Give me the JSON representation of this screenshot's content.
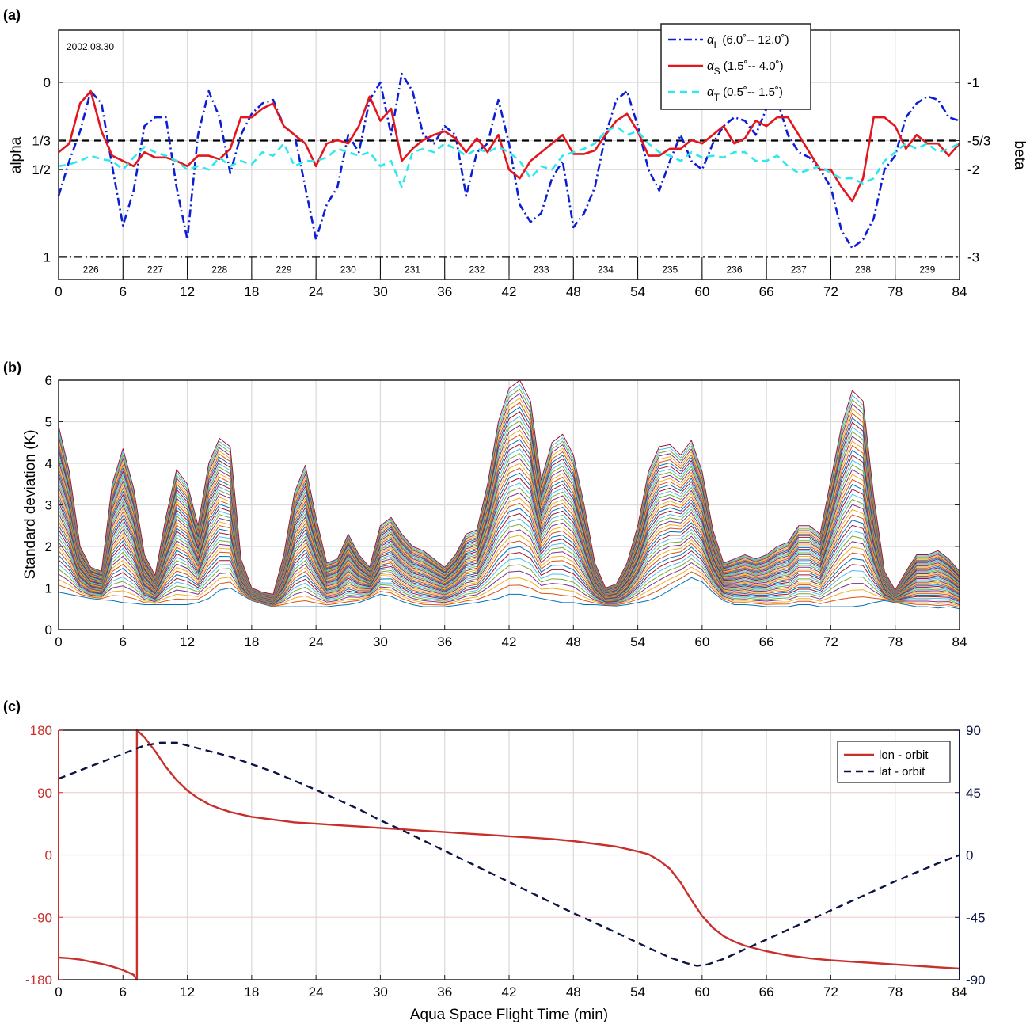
{
  "chart_data": [
    {
      "type": "line",
      "panel_label": "(a)",
      "annotation": "2002.08.30",
      "ylabel_left": "alpha",
      "ylabel_right": "beta",
      "xlim": [
        0,
        84
      ],
      "x_ticks": [
        "0",
        "6",
        "12",
        "18",
        "24",
        "30",
        "36",
        "42",
        "48",
        "54",
        "60",
        "66",
        "72",
        "78",
        "84"
      ],
      "y_left_ticks": [
        {
          "value": 0,
          "label": "0"
        },
        {
          "value": 0.3333,
          "label": "1/3"
        },
        {
          "value": 0.5,
          "label": "1/2"
        },
        {
          "value": 1,
          "label": "1"
        }
      ],
      "y_right_ticks": [
        "-1",
        "-5/3",
        "-2",
        "-3"
      ],
      "ylim": [
        -0.3,
        1.13
      ],
      "y_reversed": true,
      "orbit_labels": [
        "226",
        "227",
        "228",
        "229",
        "230",
        "231",
        "232",
        "233",
        "234",
        "235",
        "236",
        "237",
        "238",
        "239"
      ],
      "reference_lines": [
        {
          "y": 0.3333,
          "style": "dashed"
        },
        {
          "y": 1,
          "style": "dashdot"
        }
      ],
      "legend": {
        "position": "top-right",
        "entries": [
          {
            "symbol": "α",
            "sub": "L",
            "range": " (6.0˚-- 12.0˚)"
          },
          {
            "symbol": "α",
            "sub": "S",
            "range": " (1.5˚-- 4.0˚)"
          },
          {
            "symbol": "α",
            "sub": "T",
            "range": " (0.5˚-- 1.5˚)"
          }
        ]
      },
      "series": [
        {
          "color": "#0b1ed6",
          "dash": "dashdot",
          "x": [
            0,
            1,
            2,
            3,
            4,
            5,
            6,
            7,
            8,
            9,
            10,
            11,
            12,
            13,
            14,
            15,
            16,
            17,
            18,
            19,
            20,
            21,
            22,
            23,
            24,
            25,
            26,
            27,
            28,
            29,
            30,
            31,
            32,
            33,
            34,
            35,
            36,
            37,
            38,
            39,
            40,
            41,
            42,
            43,
            44,
            45,
            46,
            47,
            48,
            49,
            50,
            51,
            52,
            53,
            54,
            55,
            56,
            57,
            58,
            59,
            60,
            61,
            62,
            63,
            64,
            65,
            66,
            67,
            68,
            69,
            70,
            71,
            72,
            73,
            74,
            75,
            76,
            77,
            78,
            79,
            80,
            81,
            82,
            83,
            84
          ],
          "y": [
            0.65,
            0.45,
            0.28,
            0.05,
            0.12,
            0.48,
            0.82,
            0.62,
            0.25,
            0.2,
            0.2,
            0.6,
            0.9,
            0.3,
            0.05,
            0.2,
            0.52,
            0.3,
            0.18,
            0.12,
            0.1,
            0.25,
            0.3,
            0.6,
            0.9,
            0.7,
            0.6,
            0.3,
            0.4,
            0.1,
            0.0,
            0.3,
            -0.05,
            0.05,
            0.3,
            0.35,
            0.25,
            0.3,
            0.65,
            0.4,
            0.35,
            0.1,
            0.35,
            0.7,
            0.8,
            0.75,
            0.55,
            0.45,
            0.83,
            0.75,
            0.6,
            0.3,
            0.1,
            0.05,
            0.25,
            0.5,
            0.62,
            0.45,
            0.3,
            0.45,
            0.5,
            0.35,
            0.25,
            0.2,
            0.22,
            0.3,
            0.15,
            0.1,
            0.3,
            0.4,
            0.43,
            0.5,
            0.6,
            0.85,
            0.95,
            0.9,
            0.78,
            0.5,
            0.42,
            0.2,
            0.12,
            0.08,
            0.1,
            0.2,
            0.22
          ]
        },
        {
          "color": "#e3161d",
          "dash": "solid",
          "x": [
            0,
            1,
            2,
            3,
            4,
            5,
            6,
            7,
            8,
            9,
            10,
            11,
            12,
            13,
            14,
            15,
            16,
            17,
            18,
            19,
            20,
            21,
            22,
            23,
            24,
            25,
            26,
            27,
            28,
            29,
            30,
            31,
            32,
            33,
            34,
            35,
            36,
            37,
            38,
            39,
            40,
            41,
            42,
            43,
            44,
            45,
            46,
            47,
            48,
            49,
            50,
            51,
            52,
            53,
            54,
            55,
            56,
            57,
            58,
            59,
            60,
            61,
            62,
            63,
            64,
            65,
            66,
            67,
            68,
            69,
            70,
            71,
            72,
            73,
            74,
            75,
            76,
            77,
            78,
            79,
            80,
            81,
            82,
            83,
            84
          ],
          "y": [
            0.4,
            0.35,
            0.12,
            0.05,
            0.28,
            0.42,
            0.45,
            0.48,
            0.4,
            0.43,
            0.43,
            0.45,
            0.48,
            0.42,
            0.42,
            0.44,
            0.38,
            0.2,
            0.2,
            0.15,
            0.12,
            0.25,
            0.3,
            0.35,
            0.48,
            0.35,
            0.33,
            0.35,
            0.25,
            0.08,
            0.22,
            0.15,
            0.45,
            0.38,
            0.33,
            0.3,
            0.28,
            0.32,
            0.4,
            0.32,
            0.4,
            0.3,
            0.5,
            0.55,
            0.45,
            0.4,
            0.35,
            0.3,
            0.41,
            0.41,
            0.39,
            0.3,
            0.22,
            0.18,
            0.28,
            0.42,
            0.42,
            0.38,
            0.38,
            0.33,
            0.35,
            0.3,
            0.25,
            0.35,
            0.32,
            0.22,
            0.25,
            0.2,
            0.2,
            0.3,
            0.4,
            0.5,
            0.5,
            0.6,
            0.68,
            0.55,
            0.2,
            0.2,
            0.25,
            0.38,
            0.3,
            0.35,
            0.35,
            0.42,
            0.35
          ]
        },
        {
          "color": "#2ee8ee",
          "dash": "dashed",
          "x": [
            0,
            1,
            2,
            3,
            4,
            5,
            6,
            7,
            8,
            9,
            10,
            11,
            12,
            13,
            14,
            15,
            16,
            17,
            18,
            19,
            20,
            21,
            22,
            23,
            24,
            25,
            26,
            27,
            28,
            29,
            30,
            31,
            32,
            33,
            34,
            35,
            36,
            37,
            38,
            39,
            40,
            41,
            42,
            43,
            44,
            45,
            46,
            47,
            48,
            49,
            50,
            51,
            52,
            53,
            54,
            55,
            56,
            57,
            58,
            59,
            60,
            61,
            62,
            63,
            64,
            65,
            66,
            67,
            68,
            69,
            70,
            71,
            72,
            73,
            74,
            75,
            76,
            77,
            78,
            79,
            80,
            81,
            82,
            83,
            84
          ],
          "y": [
            0.48,
            0.47,
            0.45,
            0.42,
            0.44,
            0.45,
            0.5,
            0.43,
            0.37,
            0.4,
            0.42,
            0.45,
            0.5,
            0.48,
            0.5,
            0.43,
            0.48,
            0.45,
            0.47,
            0.4,
            0.42,
            0.35,
            0.48,
            0.45,
            0.45,
            0.43,
            0.38,
            0.4,
            0.42,
            0.4,
            0.48,
            0.45,
            0.6,
            0.4,
            0.38,
            0.4,
            0.35,
            0.38,
            0.42,
            0.38,
            0.4,
            0.37,
            0.4,
            0.45,
            0.55,
            0.48,
            0.5,
            0.42,
            0.4,
            0.38,
            0.35,
            0.28,
            0.25,
            0.3,
            0.28,
            0.35,
            0.4,
            0.42,
            0.45,
            0.4,
            0.43,
            0.42,
            0.43,
            0.4,
            0.4,
            0.45,
            0.45,
            0.42,
            0.48,
            0.52,
            0.5,
            0.48,
            0.52,
            0.55,
            0.55,
            0.58,
            0.55,
            0.45,
            0.4,
            0.35,
            0.38,
            0.35,
            0.4,
            0.38,
            0.35
          ]
        }
      ]
    },
    {
      "type": "line",
      "panel_label": "(b)",
      "ylabel": "Standard deviation (K)",
      "xlim": [
        0,
        84
      ],
      "ylim": [
        0,
        6
      ],
      "x_ticks": [
        "0",
        "6",
        "12",
        "18",
        "24",
        "30",
        "36",
        "42",
        "48",
        "54",
        "60",
        "66",
        "72",
        "78",
        "84"
      ],
      "y_ticks": [
        "0",
        "1",
        "2",
        "3",
        "4",
        "5",
        "6"
      ],
      "envelope": {
        "description_series_count": 42,
        "x": [
          0,
          1,
          2,
          3,
          4,
          5,
          6,
          7,
          8,
          9,
          10,
          11,
          12,
          13,
          14,
          15,
          16,
          17,
          18,
          19,
          20,
          21,
          22,
          23,
          24,
          25,
          26,
          27,
          28,
          29,
          30,
          31,
          32,
          33,
          34,
          35,
          36,
          37,
          38,
          39,
          40,
          41,
          42,
          43,
          44,
          45,
          46,
          47,
          48,
          49,
          50,
          51,
          52,
          53,
          54,
          55,
          56,
          57,
          58,
          59,
          60,
          61,
          62,
          63,
          64,
          65,
          66,
          67,
          68,
          69,
          70,
          71,
          72,
          73,
          74,
          75,
          76,
          77,
          78,
          79,
          80,
          81,
          82,
          83,
          84
        ],
        "lower": [
          0.9,
          0.85,
          0.8,
          0.75,
          0.72,
          0.7,
          0.65,
          0.63,
          0.6,
          0.6,
          0.6,
          0.6,
          0.6,
          0.65,
          0.75,
          0.95,
          1.0,
          0.85,
          0.7,
          0.62,
          0.55,
          0.55,
          0.55,
          0.55,
          0.55,
          0.55,
          0.58,
          0.6,
          0.65,
          0.75,
          0.85,
          0.8,
          0.68,
          0.6,
          0.55,
          0.55,
          0.55,
          0.58,
          0.62,
          0.65,
          0.7,
          0.75,
          0.85,
          0.85,
          0.8,
          0.75,
          0.7,
          0.65,
          0.65,
          0.6,
          0.6,
          0.58,
          0.57,
          0.6,
          0.65,
          0.7,
          0.8,
          0.95,
          1.1,
          1.25,
          1.15,
          0.9,
          0.7,
          0.6,
          0.6,
          0.58,
          0.55,
          0.55,
          0.55,
          0.6,
          0.6,
          0.55,
          0.55,
          0.55,
          0.55,
          0.58,
          0.65,
          0.7,
          0.65,
          0.6,
          0.55,
          0.55,
          0.52,
          0.55,
          0.5
        ],
        "upper": [
          4.9,
          3.8,
          2.0,
          1.5,
          1.4,
          3.5,
          4.35,
          3.4,
          1.8,
          1.3,
          2.7,
          3.85,
          3.5,
          2.5,
          4.0,
          4.6,
          4.4,
          1.7,
          1.0,
          0.9,
          0.85,
          1.8,
          3.3,
          3.95,
          2.7,
          1.6,
          1.7,
          2.3,
          1.8,
          1.5,
          2.5,
          2.7,
          2.3,
          2.0,
          1.9,
          1.7,
          1.5,
          1.8,
          2.3,
          2.4,
          3.5,
          5.0,
          5.8,
          6.0,
          5.5,
          3.6,
          4.5,
          4.7,
          4.2,
          3.0,
          1.6,
          1.0,
          1.1,
          1.6,
          2.5,
          3.8,
          4.4,
          4.45,
          4.2,
          4.55,
          3.8,
          2.4,
          1.6,
          1.7,
          1.8,
          1.7,
          1.8,
          2.0,
          2.1,
          2.5,
          2.5,
          2.3,
          3.6,
          4.9,
          5.75,
          5.5,
          3.2,
          1.4,
          0.95,
          1.4,
          1.8,
          1.8,
          1.9,
          1.7,
          1.4
        ]
      }
    },
    {
      "type": "line",
      "panel_label": "(c)",
      "xlabel": "Aqua Space Flight Time (min)",
      "xlim": [
        0,
        84
      ],
      "ylim_left": [
        -180,
        180
      ],
      "ylim_right": [
        -90,
        90
      ],
      "x_ticks": [
        "0",
        "6",
        "12",
        "18",
        "24",
        "30",
        "36",
        "42",
        "48",
        "54",
        "60",
        "66",
        "72",
        "78",
        "84"
      ],
      "y_left_ticks": [
        "180",
        "90",
        "0",
        "-90",
        "-180"
      ],
      "y_right_ticks": [
        "90",
        "45",
        "0",
        "-45",
        "-90"
      ],
      "legend": {
        "position": "top-right",
        "entries": [
          "lon - orbit",
          "lat - orbit"
        ]
      },
      "series": [
        {
          "name": "lon - orbit",
          "color": "#c8302c",
          "dash": "solid",
          "x": [
            0,
            1,
            2,
            3,
            4,
            5,
            6,
            7,
            7.3,
            7.3,
            8,
            9,
            10,
            11,
            12,
            13,
            14,
            15,
            16,
            18,
            20,
            22,
            24,
            26,
            28,
            30,
            32,
            34,
            36,
            38,
            40,
            42,
            44,
            46,
            48,
            50,
            52,
            54,
            55,
            56,
            57,
            58,
            59,
            60,
            61,
            62,
            63,
            64,
            66,
            68,
            70,
            72,
            74,
            76,
            78,
            80,
            82,
            84
          ],
          "y": [
            -148,
            -149,
            -151,
            -154,
            -157,
            -161,
            -166,
            -173,
            -180,
            180,
            170,
            150,
            127,
            108,
            93,
            82,
            73,
            67,
            62,
            55,
            51,
            47,
            45,
            43,
            41,
            39,
            37,
            35,
            33,
            31,
            29,
            27,
            25,
            23,
            20,
            16,
            12,
            5,
            1,
            -8,
            -20,
            -40,
            -65,
            -88,
            -105,
            -117,
            -125,
            -131,
            -139,
            -145,
            -149,
            -152,
            -154,
            -156,
            -158,
            -160,
            -162,
            -164
          ]
        },
        {
          "name": "lat - orbit",
          "color": "#0c1445",
          "dash": "dashed",
          "x": [
            0,
            3,
            6,
            8,
            9.5,
            11,
            13,
            16,
            20,
            24,
            28,
            30,
            32,
            36,
            40,
            44,
            48,
            52,
            55,
            57,
            58.5,
            59.5,
            60.5,
            62,
            64,
            66,
            70,
            74,
            78,
            82,
            84
          ],
          "y": [
            55,
            64,
            73,
            79,
            81,
            81,
            77,
            71,
            60,
            47,
            33,
            25,
            18,
            3,
            -12,
            -27,
            -42,
            -56,
            -67,
            -74,
            -78,
            -80,
            -79,
            -75,
            -68,
            -61,
            -47,
            -33,
            -19,
            -6,
            0
          ]
        }
      ]
    }
  ]
}
